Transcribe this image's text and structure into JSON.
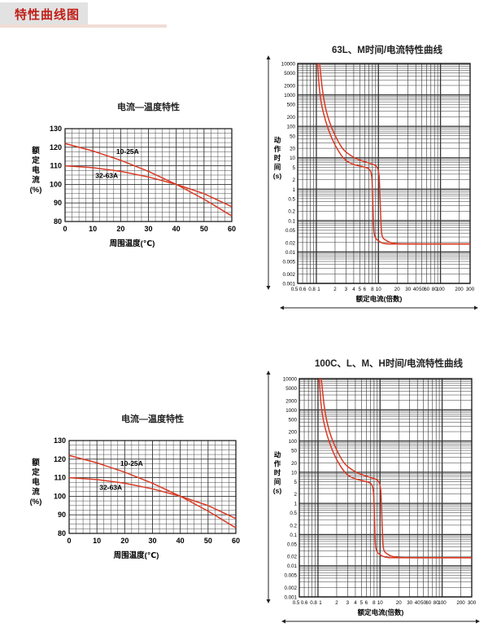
{
  "header": {
    "title": "特性曲线图"
  },
  "colors": {
    "curve": "#d93a24",
    "grid": "#333333",
    "title_red": "#c01f18"
  },
  "chart_data": [
    {
      "id": "temp-top",
      "type": "line",
      "title": "电流—温度特性",
      "xlabel": "周围温度(℃)",
      "ylabel": [
        "额",
        "定",
        "电",
        "流",
        "(%)"
      ],
      "x_ticks": [
        "0",
        "10",
        "20",
        "30",
        "40",
        "50",
        "60"
      ],
      "y_ticks": [
        "80",
        "90",
        "100",
        "110",
        "120",
        "130"
      ],
      "xlim": [
        0,
        60
      ],
      "ylim": [
        80,
        130
      ],
      "grid": true,
      "series": [
        {
          "name": "10-25A",
          "x": [
            0,
            10,
            20,
            30,
            40,
            50,
            60
          ],
          "values": [
            122,
            118,
            113,
            107,
            100,
            92,
            83
          ]
        },
        {
          "name": "32-63A",
          "x": [
            0,
            10,
            20,
            30,
            40,
            50,
            60
          ],
          "values": [
            110,
            109,
            107,
            104,
            100,
            95,
            88
          ]
        }
      ]
    },
    {
      "id": "trip-top",
      "type": "line",
      "title": "63L、M时间/电流特性曲线",
      "xlabel": "额定电流(倍数)",
      "ylabel": [
        "动",
        "作",
        "时",
        "间",
        "(s)"
      ],
      "x_scale": "log",
      "y_scale": "log",
      "x_ticks": [
        "0.5",
        "0.6",
        "0.8",
        "1",
        "2",
        "3",
        "4",
        "5",
        "6",
        "8",
        "10",
        "20",
        "30",
        "40",
        "50",
        "60",
        "80",
        "100",
        "200",
        "300"
      ],
      "y_ticks": [
        "10000",
        "5000",
        "2000",
        "1000",
        "500",
        "200",
        "100",
        "50",
        "20",
        "10",
        "5",
        "2",
        "1",
        "0.5",
        "0.2",
        "0.1",
        "0.05",
        "0.02",
        "0.01",
        "0.005",
        "0.002",
        "0.001"
      ],
      "xlim": [
        0.5,
        300
      ],
      "ylim": [
        0.001,
        10000
      ],
      "grid": true,
      "series": [
        {
          "name": "",
          "x": [
            1.05,
            1.1,
            1.2,
            1.4,
            1.7,
            2.0,
            2.5,
            3.0,
            4.0,
            5.0,
            6.0,
            7.0,
            7.8,
            8.0,
            8.2,
            8.4,
            8.7,
            9.5,
            12,
            20,
            300
          ],
          "values": [
            10000,
            2000,
            500,
            150,
            50,
            25,
            12,
            8,
            6,
            5.5,
            5.0,
            4.6,
            3.2,
            1,
            0.2,
            0.05,
            0.03,
            0.024,
            0.018,
            0.018,
            0.018
          ]
        },
        {
          "name": "",
          "x": [
            1.13,
            1.2,
            1.3,
            1.5,
            1.8,
            2.2,
            2.7,
            3.5,
            4.5,
            6.0,
            7.5,
            9.0,
            10.2,
            10.5,
            10.8,
            11.1,
            11.5,
            12.5,
            16,
            25,
            300
          ],
          "values": [
            10000,
            3000,
            800,
            220,
            80,
            35,
            18,
            12,
            9,
            7.5,
            6.5,
            5.8,
            4.0,
            1,
            0.2,
            0.05,
            0.03,
            0.025,
            0.019,
            0.018,
            0.018
          ]
        }
      ]
    },
    {
      "id": "temp-bottom",
      "type": "line",
      "title": "电流—温度特性",
      "xlabel": "周围温度(℃)",
      "ylabel": [
        "额",
        "定",
        "电",
        "流",
        "(%)"
      ],
      "x_ticks": [
        "0",
        "10",
        "20",
        "30",
        "40",
        "50",
        "60"
      ],
      "y_ticks": [
        "80",
        "90",
        "100",
        "110",
        "120",
        "130"
      ],
      "xlim": [
        0,
        60
      ],
      "ylim": [
        80,
        130
      ],
      "grid": true,
      "series": [
        {
          "name": "10-25A",
          "x": [
            0,
            10,
            20,
            30,
            40,
            50,
            60
          ],
          "values": [
            122,
            118,
            113,
            107,
            100,
            92,
            83
          ]
        },
        {
          "name": "32-63A",
          "x": [
            0,
            10,
            20,
            30,
            40,
            50,
            60
          ],
          "values": [
            110,
            109,
            107,
            104,
            100,
            95,
            88
          ]
        }
      ]
    },
    {
      "id": "trip-bottom",
      "type": "line",
      "title": "100C、L、M、H时间/电流特性曲线",
      "xlabel": "额定电流(倍数)",
      "ylabel": [
        "动",
        "作",
        "时",
        "间",
        "(s)"
      ],
      "x_scale": "log",
      "y_scale": "log",
      "x_ticks": [
        "0.5",
        "0.6",
        "0.8",
        "1",
        "2",
        "3",
        "4",
        "5",
        "6",
        "8",
        "10",
        "20",
        "30",
        "40",
        "50",
        "60",
        "80",
        "100",
        "200",
        "300"
      ],
      "y_ticks": [
        "10000",
        "5000",
        "2000",
        "1000",
        "500",
        "200",
        "100",
        "50",
        "20",
        "10",
        "5",
        "2",
        "1",
        "0.5",
        "0.2",
        "0.1",
        "0.05",
        "0.02",
        "0.01",
        "0.005",
        "0.002",
        "0.001"
      ],
      "xlim": [
        0.5,
        300
      ],
      "ylim": [
        0.001,
        10000
      ],
      "grid": true,
      "series": [
        {
          "name": "",
          "x": [
            1.05,
            1.1,
            1.2,
            1.4,
            1.7,
            2.0,
            2.5,
            3.0,
            4.0,
            5.0,
            6.0,
            7.0,
            7.8,
            8.0,
            8.2,
            8.4,
            8.7,
            9.5,
            12,
            20,
            300
          ],
          "values": [
            10000,
            2000,
            500,
            150,
            50,
            25,
            12,
            8,
            6,
            5.5,
            5.0,
            4.6,
            3.2,
            1,
            0.2,
            0.05,
            0.03,
            0.024,
            0.018,
            0.018,
            0.018
          ]
        },
        {
          "name": "",
          "x": [
            1.13,
            1.2,
            1.3,
            1.5,
            1.8,
            2.2,
            2.7,
            3.5,
            4.5,
            6.0,
            7.5,
            9.0,
            10.2,
            10.5,
            10.8,
            11.1,
            11.5,
            12.5,
            16,
            25,
            300
          ],
          "values": [
            10000,
            3000,
            800,
            220,
            80,
            35,
            18,
            12,
            9,
            7.5,
            6.5,
            5.8,
            4.0,
            1,
            0.2,
            0.05,
            0.03,
            0.025,
            0.019,
            0.018,
            0.018
          ]
        }
      ]
    }
  ]
}
